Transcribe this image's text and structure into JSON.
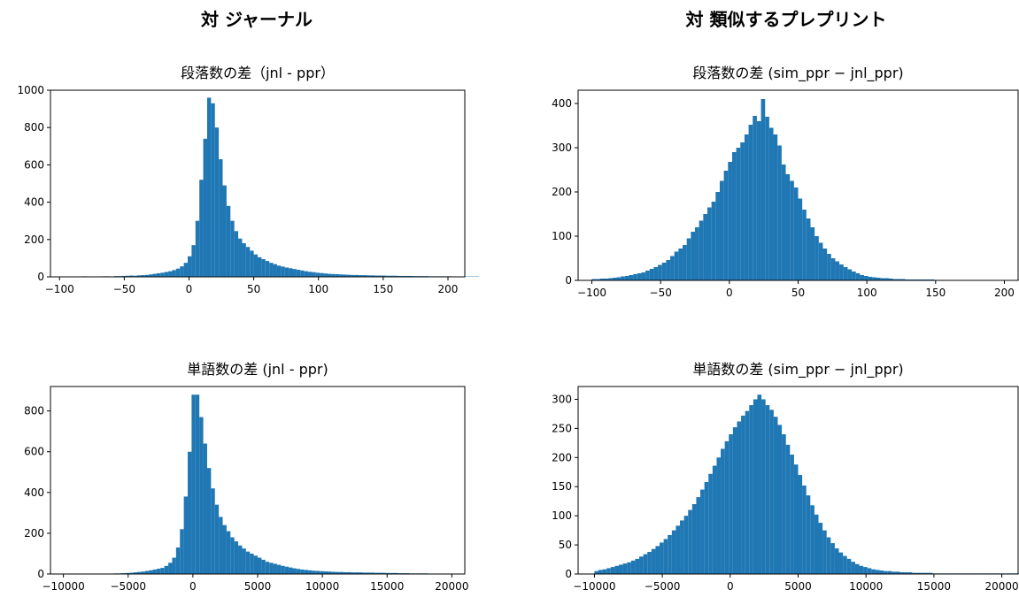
{
  "headings": {
    "left": "対 ジャーナル",
    "right": "対 類似するプレプリント"
  },
  "chart_data": [
    {
      "type": "histogram",
      "title": "段落数の差（jnl - ppr）",
      "xlabel": "",
      "ylabel": "",
      "xlim": [
        -107,
        213
      ],
      "ylim": [
        0,
        1000
      ],
      "xticks": [
        -100,
        -50,
        0,
        50,
        100,
        150,
        200
      ],
      "xtick_labels": [
        "−100",
        "−50",
        "0",
        "50",
        "100",
        "150",
        "200"
      ],
      "yticks": [
        0,
        200,
        400,
        600,
        800,
        1000
      ],
      "bins": {
        "start": -100,
        "width": 3
      },
      "values": [
        2,
        2,
        1,
        1,
        2,
        1,
        3,
        2,
        1,
        2,
        2,
        3,
        3,
        2,
        4,
        4,
        5,
        6,
        7,
        6,
        8,
        9,
        10,
        13,
        16,
        19,
        22,
        26,
        30,
        36,
        44,
        56,
        75,
        110,
        170,
        300,
        520,
        740,
        960,
        930,
        800,
        630,
        490,
        380,
        300,
        245,
        205,
        180,
        160,
        140,
        120,
        105,
        95,
        85,
        75,
        68,
        60,
        55,
        50,
        46,
        42,
        38,
        34,
        30,
        27,
        25,
        22,
        20,
        18,
        16,
        15,
        14,
        13,
        12,
        11,
        10,
        10,
        9,
        9,
        8,
        8,
        7,
        7,
        7,
        6,
        6,
        6,
        5,
        5,
        5,
        5,
        4,
        4,
        4,
        4,
        3,
        3,
        3,
        3,
        3,
        3,
        2,
        2,
        2,
        2,
        2,
        2,
        2
      ]
    },
    {
      "type": "histogram",
      "title": "段落数の差 (sim_ppr − jnl_ppr)",
      "xlabel": "",
      "ylabel": "",
      "xlim": [
        -110,
        210
      ],
      "ylim": [
        0,
        430
      ],
      "xticks": [
        -100,
        -50,
        0,
        50,
        100,
        150,
        200
      ],
      "xtick_labels": [
        "−100",
        "−50",
        "0",
        "50",
        "100",
        "150",
        "200"
      ],
      "yticks": [
        0,
        100,
        200,
        300,
        400
      ],
      "bins": {
        "start": -100,
        "width": 3
      },
      "values": [
        3,
        3,
        4,
        4,
        5,
        6,
        7,
        9,
        10,
        12,
        14,
        16,
        18,
        22,
        26,
        30,
        35,
        40,
        46,
        55,
        65,
        72,
        80,
        95,
        110,
        120,
        135,
        150,
        165,
        178,
        200,
        225,
        248,
        268,
        290,
        300,
        312,
        330,
        352,
        372,
        360,
        410,
        370,
        345,
        330,
        305,
        262,
        240,
        225,
        210,
        185,
        160,
        140,
        120,
        100,
        85,
        72,
        60,
        50,
        43,
        36,
        30,
        25,
        20,
        16,
        12,
        10,
        8,
        7,
        6,
        5,
        5,
        4,
        3,
        3,
        3,
        2,
        2,
        2,
        2,
        2,
        2,
        2,
        1,
        1,
        1,
        1,
        1,
        1,
        1,
        1,
        1,
        1,
        1,
        1,
        1,
        1,
        1,
        1,
        1,
        1,
        1,
        1,
        1,
        1,
        1,
        1
      ]
    },
    {
      "type": "histogram",
      "title": "単語数の差 (jnl - ppr)",
      "xlabel": "",
      "ylabel": "",
      "xlim": [
        -11000,
        21000
      ],
      "ylim": [
        0,
        920
      ],
      "xticks": [
        -10000,
        -5000,
        0,
        5000,
        10000,
        15000,
        20000
      ],
      "xtick_labels": [
        "−10000",
        "−5000",
        "0",
        "5000",
        "10000",
        "15000",
        "20000"
      ],
      "yticks": [
        0,
        200,
        400,
        600,
        800
      ],
      "bins": {
        "start": -10000,
        "width": 300
      },
      "values": [
        1,
        1,
        1,
        1,
        1,
        1,
        1,
        2,
        1,
        2,
        2,
        2,
        2,
        3,
        3,
        4,
        5,
        6,
        8,
        10,
        12,
        15,
        18,
        22,
        26,
        30,
        40,
        55,
        80,
        130,
        220,
        380,
        600,
        880,
        880,
        770,
        640,
        520,
        420,
        340,
        280,
        240,
        210,
        180,
        160,
        140,
        125,
        110,
        100,
        90,
        80,
        70,
        60,
        55,
        50,
        45,
        40,
        36,
        32,
        28,
        25,
        22,
        20,
        18,
        16,
        15,
        14,
        13,
        12,
        11,
        10,
        10,
        9,
        9,
        8,
        8,
        8,
        7,
        7,
        7,
        6,
        6,
        6,
        5,
        5,
        5,
        4,
        4,
        4,
        3,
        3,
        3,
        3,
        3,
        2,
        2,
        2,
        2,
        2,
        2,
        2,
        2
      ]
    },
    {
      "type": "histogram",
      "title": "単語数の差 (sim_ppr − jnl_ppr)",
      "xlabel": "",
      "ylabel": "",
      "xlim": [
        -11200,
        21200
      ],
      "ylim": [
        0,
        322
      ],
      "xticks": [
        -10000,
        -5000,
        0,
        5000,
        10000,
        15000,
        20000
      ],
      "xtick_labels": [
        "−10000",
        "−5000",
        "0",
        "5000",
        "10000",
        "15000",
        "20000"
      ],
      "yticks": [
        0,
        50,
        100,
        150,
        200,
        250,
        300
      ],
      "bins": {
        "start": -10000,
        "width": 300
      },
      "values": [
        5,
        7,
        8,
        10,
        12,
        14,
        16,
        18,
        20,
        23,
        26,
        30,
        34,
        38,
        43,
        48,
        54,
        60,
        67,
        75,
        83,
        92,
        100,
        110,
        120,
        132,
        145,
        158,
        172,
        186,
        200,
        215,
        228,
        240,
        252,
        262,
        272,
        280,
        290,
        300,
        308,
        300,
        290,
        282,
        270,
        256,
        240,
        222,
        205,
        188,
        170,
        152,
        135,
        118,
        102,
        88,
        75,
        63,
        53,
        44,
        37,
        31,
        26,
        21,
        17,
        14,
        12,
        10,
        8,
        7,
        6,
        5,
        5,
        4,
        4,
        3,
        3,
        3,
        2,
        2,
        2,
        2,
        2,
        1,
        1,
        1,
        1,
        1,
        1,
        1,
        1,
        1,
        1,
        1,
        1,
        1,
        1,
        1,
        1,
        1,
        1,
        1,
        1,
        1,
        1
      ]
    }
  ]
}
